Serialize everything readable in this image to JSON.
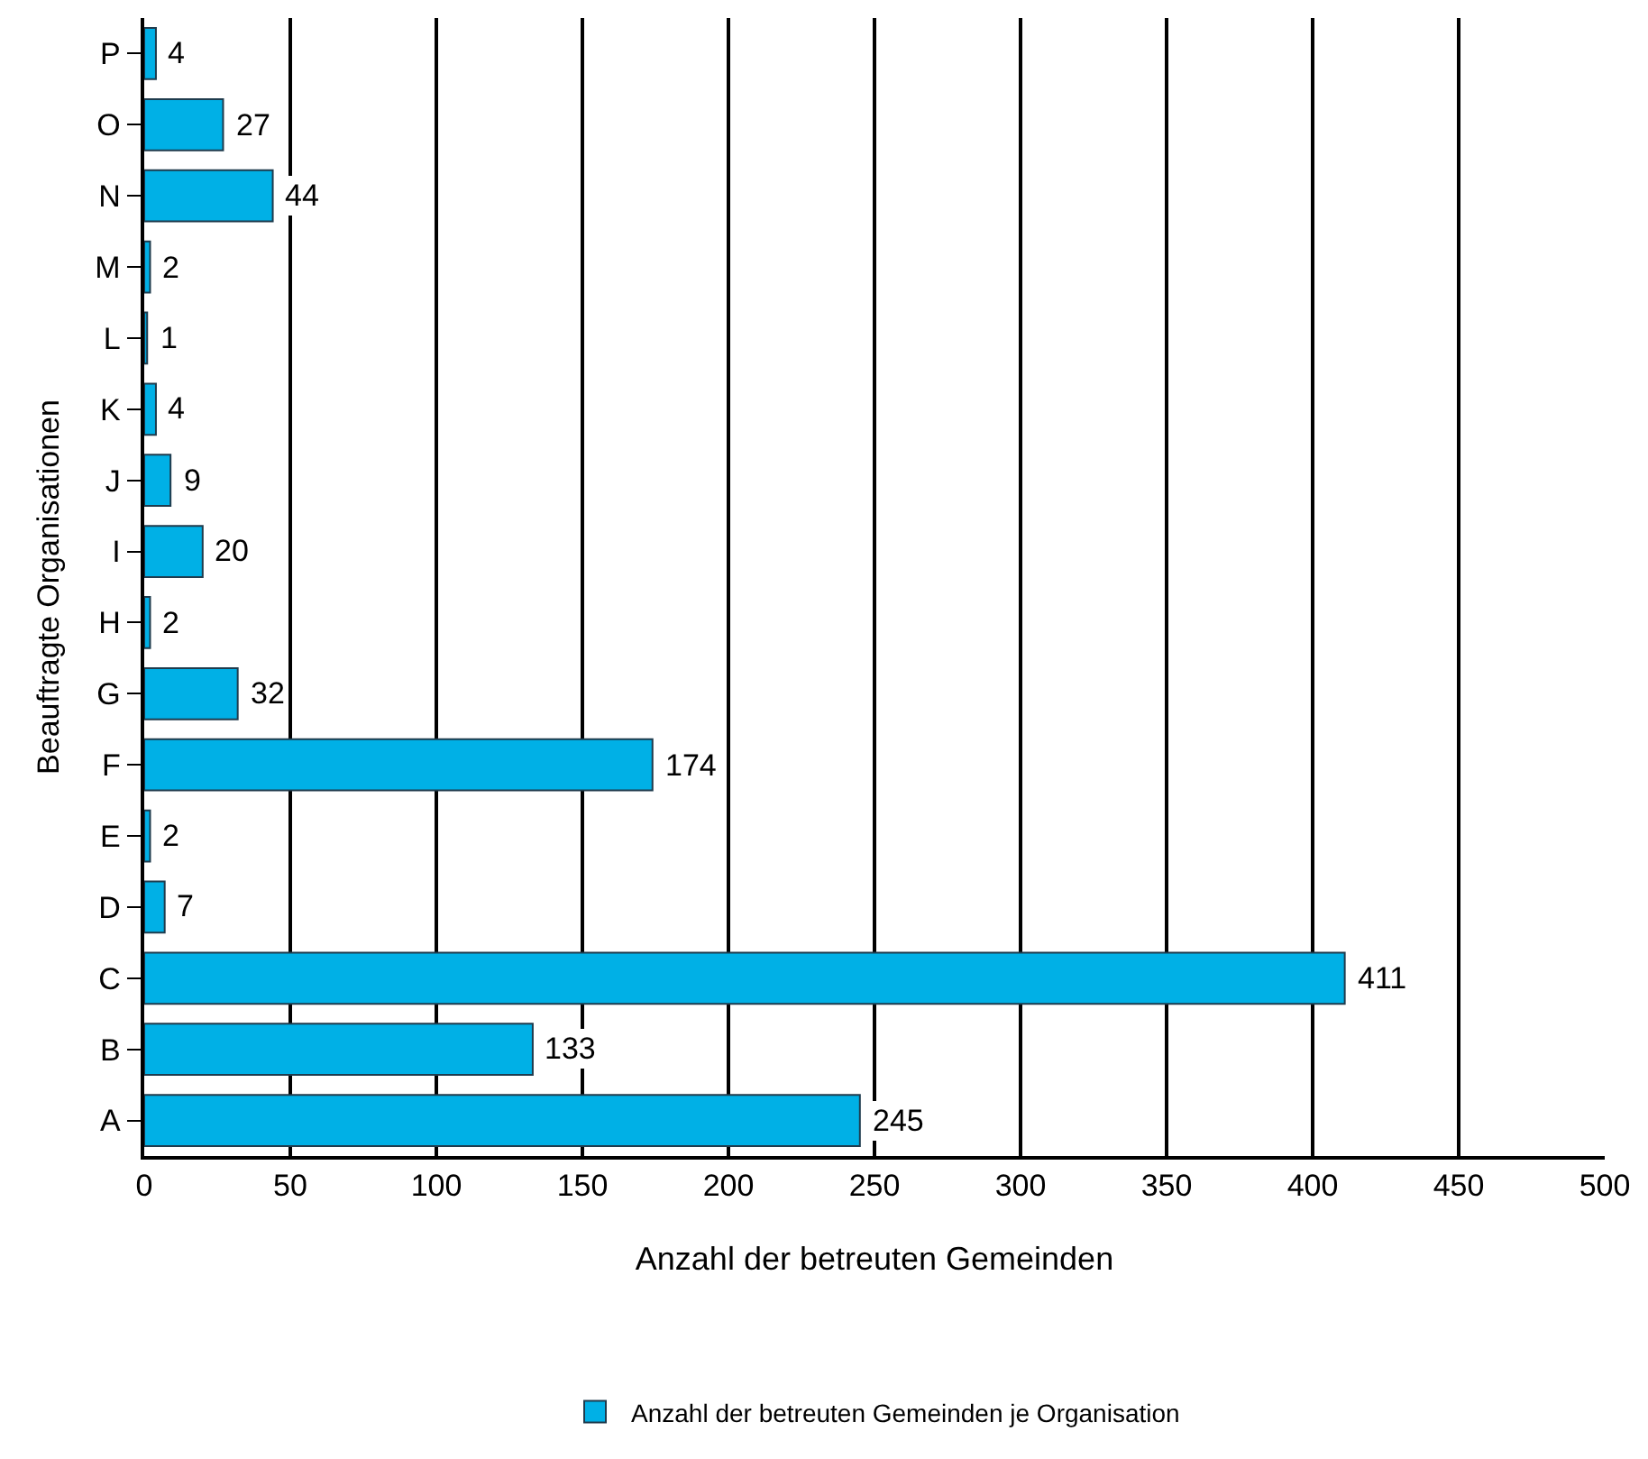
{
  "chart_data": {
    "type": "bar",
    "orientation": "horizontal",
    "xlabel": "Anzahl der betreuten Gemeinden",
    "ylabel": "Beauftragte Organisationen",
    "categories": [
      "P",
      "O",
      "N",
      "M",
      "L",
      "K",
      "J",
      "I",
      "H",
      "G",
      "F",
      "E",
      "D",
      "C",
      "B",
      "A"
    ],
    "series": [
      {
        "name": "Anzahl der betreuten Gemeinden je Organisation",
        "color": "#00b0e6",
        "values": [
          4,
          27,
          44,
          2,
          1,
          4,
          9,
          20,
          2,
          32,
          174,
          2,
          7,
          411,
          133,
          245
        ]
      }
    ],
    "xlim": [
      0,
      500
    ],
    "xticks": [
      0,
      50,
      100,
      150,
      200,
      250,
      300,
      350,
      400,
      450,
      500
    ],
    "grid": "x",
    "legend": "bottom",
    "data_labels": true
  }
}
